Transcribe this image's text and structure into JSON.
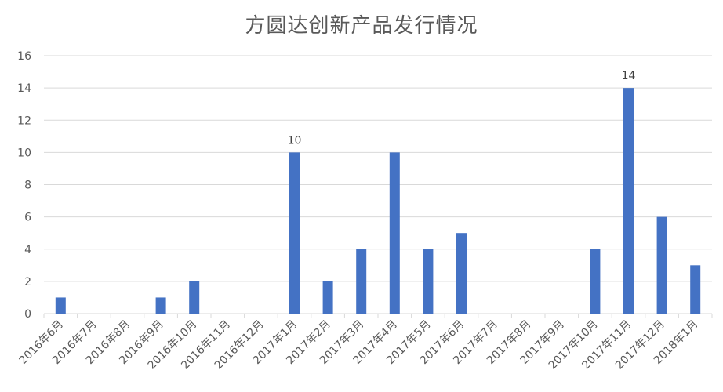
{
  "chart_data": {
    "type": "bar",
    "title": "方圆达创新产品发行情况",
    "xlabel": "",
    "ylabel": "",
    "categories": [
      "2016年6月",
      "2016年7月",
      "2016年8月",
      "2016年9月",
      "2016年10月",
      "2016年11月",
      "2016年12月",
      "2017年1月",
      "2017年2月",
      "2017年3月",
      "2017年4月",
      "2017年5月",
      "2017年6月",
      "2017年7月",
      "2017年8月",
      "2017年9月",
      "2017年10月",
      "2017年11月",
      "2017年12月",
      "2018年1月"
    ],
    "values": [
      1,
      0,
      0,
      1,
      2,
      0,
      0,
      10,
      2,
      4,
      10,
      4,
      5,
      0,
      0,
      0,
      4,
      14,
      6,
      3
    ],
    "data_labels": {
      "7": "10",
      "17": "14"
    },
    "ylim": [
      0,
      16
    ],
    "yticks": [
      0,
      2,
      4,
      6,
      8,
      10,
      12,
      14,
      16
    ],
    "grid": true,
    "bar_color": "#4472C4",
    "grid_color": "#D9D9D9",
    "text_color": "#595959"
  }
}
